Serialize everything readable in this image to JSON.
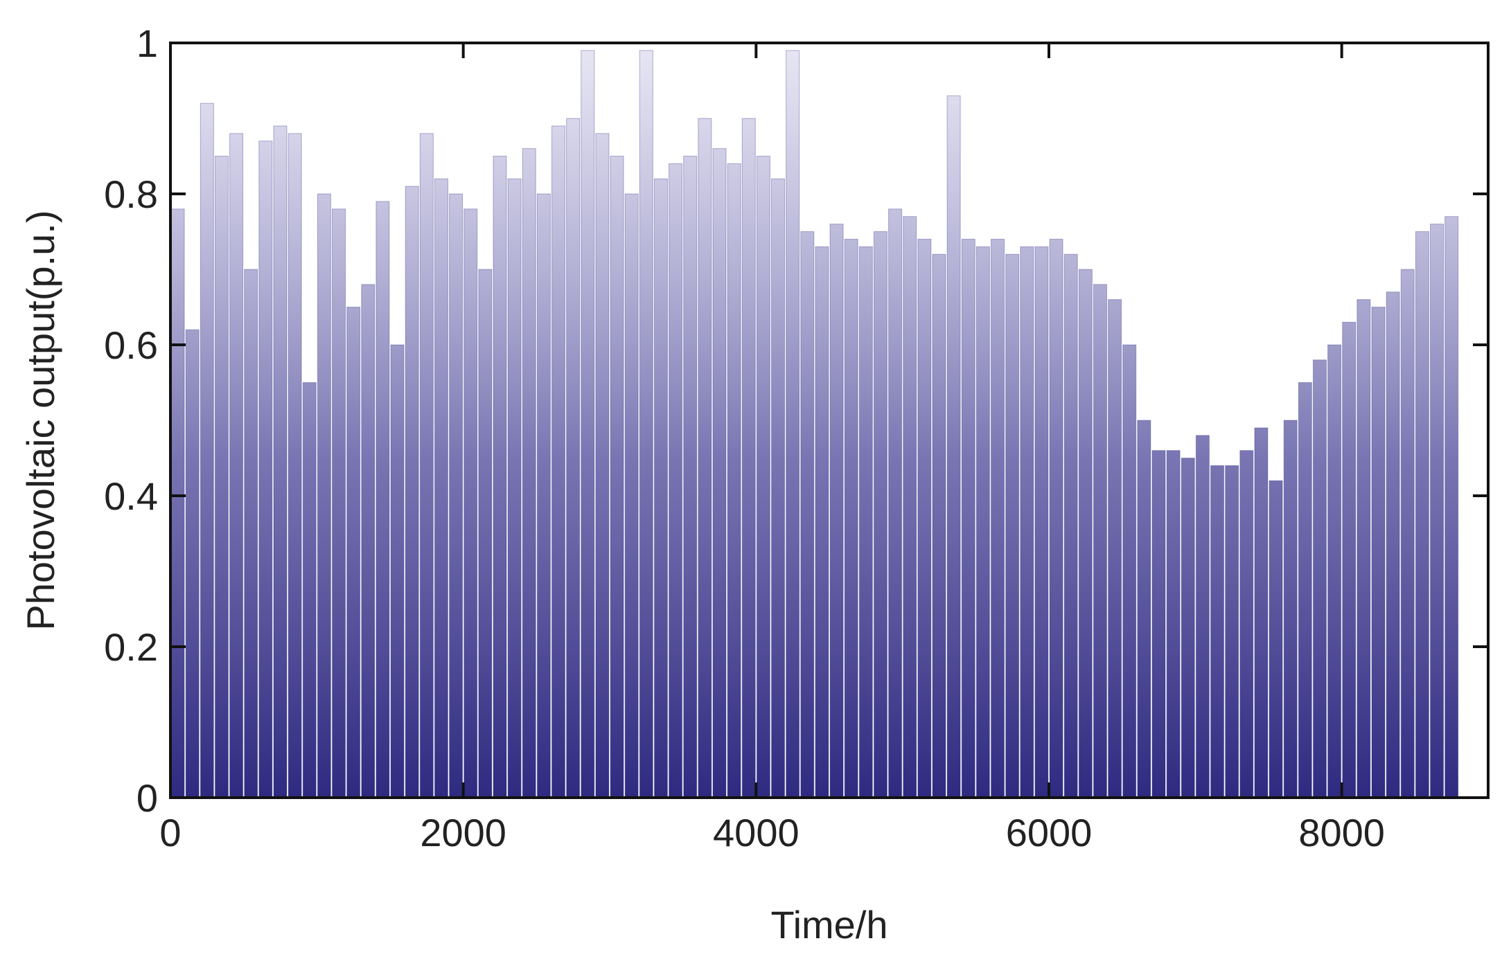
{
  "chart_data": {
    "type": "bar",
    "x_label": "Time/h",
    "y_label": "Photovoltaic output(p.u.)",
    "x": [
      50,
      150,
      250,
      350,
      450,
      550,
      650,
      750,
      850,
      950,
      1050,
      1150,
      1250,
      1350,
      1450,
      1550,
      1650,
      1750,
      1850,
      1950,
      2050,
      2150,
      2250,
      2350,
      2450,
      2550,
      2650,
      2750,
      2850,
      2950,
      3050,
      3150,
      3250,
      3350,
      3450,
      3550,
      3650,
      3750,
      3850,
      3950,
      4050,
      4150,
      4250,
      4350,
      4450,
      4550,
      4650,
      4750,
      4850,
      4950,
      5050,
      5150,
      5250,
      5350,
      5450,
      5550,
      5650,
      5750,
      5850,
      5950,
      6050,
      6150,
      6250,
      6350,
      6450,
      6550,
      6650,
      6750,
      6850,
      6950,
      7050,
      7150,
      7250,
      7350,
      7450,
      7550,
      7650,
      7750,
      7850,
      7950,
      8050,
      8150,
      8250,
      8350,
      8450,
      8550,
      8650,
      8750
    ],
    "values": [
      0.78,
      0.62,
      0.92,
      0.85,
      0.88,
      0.7,
      0.87,
      0.89,
      0.88,
      0.55,
      0.8,
      0.78,
      0.65,
      0.68,
      0.79,
      0.6,
      0.81,
      0.88,
      0.82,
      0.8,
      0.78,
      0.7,
      0.85,
      0.82,
      0.86,
      0.8,
      0.89,
      0.9,
      0.99,
      0.88,
      0.85,
      0.8,
      0.99,
      0.82,
      0.84,
      0.85,
      0.9,
      0.86,
      0.84,
      0.9,
      0.85,
      0.82,
      0.99,
      0.75,
      0.73,
      0.76,
      0.74,
      0.73,
      0.75,
      0.78,
      0.77,
      0.74,
      0.72,
      0.93,
      0.74,
      0.73,
      0.74,
      0.72,
      0.73,
      0.73,
      0.74,
      0.72,
      0.7,
      0.68,
      0.66,
      0.6,
      0.5,
      0.46,
      0.46,
      0.45,
      0.48,
      0.44,
      0.44,
      0.46,
      0.49,
      0.42,
      0.5,
      0.55,
      0.58,
      0.6,
      0.63,
      0.66,
      0.65,
      0.67,
      0.7,
      0.75,
      0.76,
      0.77
    ],
    "color": "#2e2a80",
    "xlim": [
      0,
      9000
    ],
    "ylim": [
      0,
      1
    ],
    "xticks": [
      0,
      2000,
      4000,
      6000,
      8000
    ],
    "yticks": [
      0,
      0.2,
      0.4,
      0.6,
      0.8,
      1
    ],
    "grid": false
  }
}
